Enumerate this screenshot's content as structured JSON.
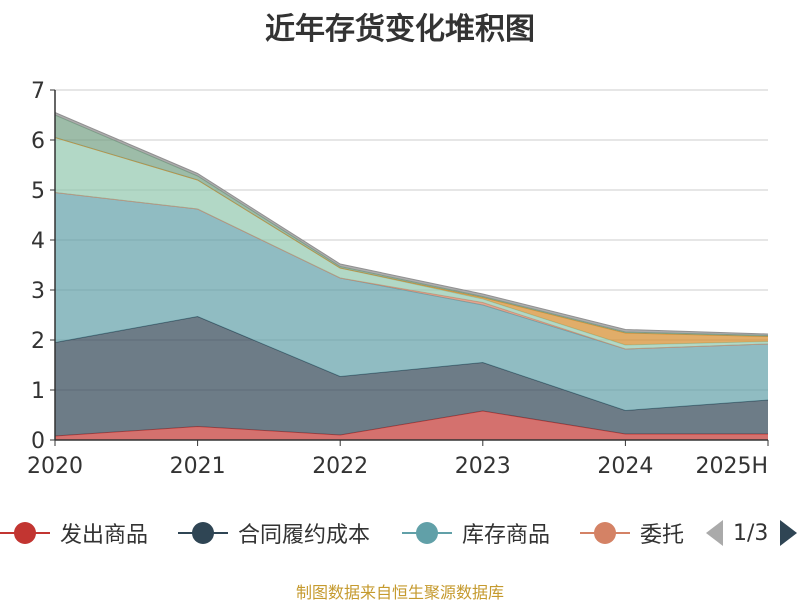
{
  "chart_data": {
    "type": "area",
    "stacked": true,
    "title": "近年存货变化堆积图",
    "x": [
      "2020",
      "2021",
      "2022",
      "2023",
      "2024",
      "2025H"
    ],
    "ylim": [
      0,
      7
    ],
    "yticks": [
      0,
      1,
      2,
      3,
      4,
      5,
      6,
      7
    ],
    "grid": true,
    "ylabel": "",
    "series": [
      {
        "name": "发出商品",
        "color": "#c23531",
        "values": [
          0.08,
          0.27,
          0.1,
          0.58,
          0.12,
          0.12
        ]
      },
      {
        "name": "合同履约成本",
        "color": "#2f4554",
        "values": [
          1.87,
          2.2,
          1.17,
          0.97,
          0.47,
          0.68
        ]
      },
      {
        "name": "库存商品",
        "color": "#61a0a8",
        "values": [
          3.0,
          2.15,
          1.97,
          1.15,
          1.23,
          1.12
        ]
      },
      {
        "name": "委托",
        "color": "#d48265",
        "values": [
          0.0,
          0.0,
          0.0,
          0.05,
          0.0,
          0.0
        ]
      },
      {
        "name": "",
        "color": "#91c7ae",
        "values": [
          1.1,
          0.58,
          0.2,
          0.07,
          0.08,
          0.05
        ]
      },
      {
        "name": "",
        "color": "#d48a2a",
        "values": [
          0.0,
          0.0,
          0.0,
          0.03,
          0.24,
          0.1
        ]
      },
      {
        "name": "",
        "color": "#749f83",
        "values": [
          0.45,
          0.08,
          0.03,
          0.02,
          0.02,
          0.02
        ]
      },
      {
        "name": "",
        "color": "#8a8a8a",
        "values": [
          0.05,
          0.05,
          0.05,
          0.05,
          0.05,
          0.03
        ]
      }
    ],
    "legend": {
      "position": "bottom",
      "visible": [
        "发出商品",
        "合同履约成本",
        "库存商品",
        "委托"
      ],
      "page": "1/3"
    }
  },
  "footer": {
    "source": "制图数据来自恒生聚源数据库"
  }
}
